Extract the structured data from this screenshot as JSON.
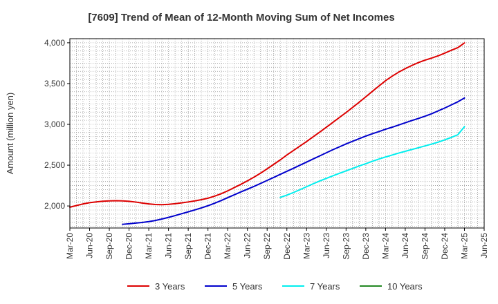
{
  "chart_data": {
    "type": "line",
    "title": "[7609]  Trend of Mean of 12-Month Moving Sum of Net Incomes",
    "xlabel": "",
    "ylabel": "Amount (million yen)",
    "x_ticks": [
      "Mar-20",
      "Jun-20",
      "Sep-20",
      "Dec-20",
      "Mar-21",
      "Jun-21",
      "Sep-21",
      "Dec-21",
      "Mar-22",
      "Jun-22",
      "Sep-22",
      "Dec-22",
      "Mar-23",
      "Jun-23",
      "Sep-23",
      "Dec-23",
      "Mar-24",
      "Jun-24",
      "Sep-24",
      "Dec-24",
      "Mar-25",
      "Jun-25"
    ],
    "y_ticks": [
      2000,
      2500,
      3000,
      3500,
      4000
    ],
    "y_tick_labels": [
      "2,000",
      "2,500",
      "3,000",
      "3,500",
      "4,000"
    ],
    "ylim": [
      1730,
      4050
    ],
    "grid": true,
    "legend_position": "bottom",
    "series": [
      {
        "name": "3 Years",
        "color": "#dd0000",
        "x": [
          "Mar-20",
          "Apr-20",
          "May-20",
          "Jun-20",
          "Jul-20",
          "Aug-20",
          "Sep-20",
          "Oct-20",
          "Nov-20",
          "Dec-20",
          "Jan-21",
          "Feb-21",
          "Mar-21",
          "Apr-21",
          "May-21",
          "Jun-21",
          "Jul-21",
          "Aug-21",
          "Sep-21",
          "Oct-21",
          "Nov-21",
          "Dec-21",
          "Jan-22",
          "Feb-22",
          "Mar-22",
          "Apr-22",
          "May-22",
          "Jun-22",
          "Jul-22",
          "Aug-22",
          "Sep-22",
          "Oct-22",
          "Nov-22",
          "Dec-22",
          "Jan-23",
          "Feb-23",
          "Mar-23",
          "Apr-23",
          "May-23",
          "Jun-23",
          "Jul-23",
          "Aug-23",
          "Sep-23",
          "Oct-23",
          "Nov-23",
          "Dec-23",
          "Jan-24",
          "Feb-24",
          "Mar-24",
          "Apr-24",
          "May-24",
          "Jun-24",
          "Jul-24",
          "Aug-24",
          "Sep-24",
          "Oct-24",
          "Nov-24",
          "Dec-24",
          "Jan-25",
          "Feb-25",
          "Mar-25"
        ],
        "values": [
          1985,
          2005,
          2025,
          2040,
          2050,
          2058,
          2062,
          2064,
          2062,
          2057,
          2048,
          2036,
          2025,
          2018,
          2016,
          2020,
          2028,
          2038,
          2049,
          2062,
          2077,
          2095,
          2120,
          2150,
          2185,
          2225,
          2265,
          2308,
          2353,
          2402,
          2455,
          2510,
          2565,
          2625,
          2680,
          2735,
          2790,
          2848,
          2905,
          2965,
          3025,
          3085,
          3145,
          3208,
          3272,
          3338,
          3405,
          3470,
          3535,
          3590,
          3640,
          3683,
          3722,
          3757,
          3787,
          3812,
          3840,
          3873,
          3908,
          3940,
          3998
        ]
      },
      {
        "name": "5 Years",
        "color": "#0000cc",
        "x": [
          "Nov-20",
          "Dec-20",
          "Jan-21",
          "Feb-21",
          "Mar-21",
          "Apr-21",
          "May-21",
          "Jun-21",
          "Jul-21",
          "Aug-21",
          "Sep-21",
          "Oct-21",
          "Nov-21",
          "Dec-21",
          "Jan-22",
          "Feb-22",
          "Mar-22",
          "Apr-22",
          "May-22",
          "Jun-22",
          "Jul-22",
          "Aug-22",
          "Sep-22",
          "Oct-22",
          "Nov-22",
          "Dec-22",
          "Jan-23",
          "Feb-23",
          "Mar-23",
          "Apr-23",
          "May-23",
          "Jun-23",
          "Jul-23",
          "Aug-23",
          "Sep-23",
          "Oct-23",
          "Nov-23",
          "Dec-23",
          "Jan-24",
          "Feb-24",
          "Mar-24",
          "Apr-24",
          "May-24",
          "Jun-24",
          "Jul-24",
          "Aug-24",
          "Sep-24",
          "Oct-24",
          "Nov-24",
          "Dec-24",
          "Jan-25",
          "Feb-25",
          "Mar-25"
        ],
        "values": [
          1775,
          1782,
          1790,
          1798,
          1808,
          1822,
          1840,
          1860,
          1882,
          1905,
          1928,
          1952,
          1976,
          2003,
          2033,
          2066,
          2102,
          2137,
          2172,
          2206,
          2240,
          2276,
          2313,
          2350,
          2388,
          2425,
          2462,
          2500,
          2538,
          2576,
          2614,
          2652,
          2690,
          2725,
          2760,
          2793,
          2825,
          2857,
          2885,
          2912,
          2940,
          2965,
          2992,
          3020,
          3047,
          3073,
          3100,
          3130,
          3165,
          3200,
          3238,
          3277,
          3323
        ]
      },
      {
        "name": "7 Years",
        "color": "#00eeee",
        "x": [
          "Nov-22",
          "Dec-22",
          "Jan-23",
          "Feb-23",
          "Mar-23",
          "Apr-23",
          "May-23",
          "Jun-23",
          "Jul-23",
          "Aug-23",
          "Sep-23",
          "Oct-23",
          "Nov-23",
          "Dec-23",
          "Jan-24",
          "Feb-24",
          "Mar-24",
          "Apr-24",
          "May-24",
          "Jun-24",
          "Jul-24",
          "Aug-24",
          "Sep-24",
          "Oct-24",
          "Nov-24",
          "Dec-24",
          "Jan-25",
          "Feb-25",
          "Mar-25"
        ],
        "values": [
          2105,
          2133,
          2165,
          2200,
          2236,
          2272,
          2306,
          2338,
          2370,
          2400,
          2430,
          2460,
          2490,
          2518,
          2548,
          2575,
          2600,
          2624,
          2648,
          2670,
          2692,
          2714,
          2736,
          2758,
          2782,
          2810,
          2840,
          2873,
          2972
        ]
      },
      {
        "name": "10 Years",
        "color": "#228822",
        "x": [],
        "values": []
      }
    ]
  }
}
